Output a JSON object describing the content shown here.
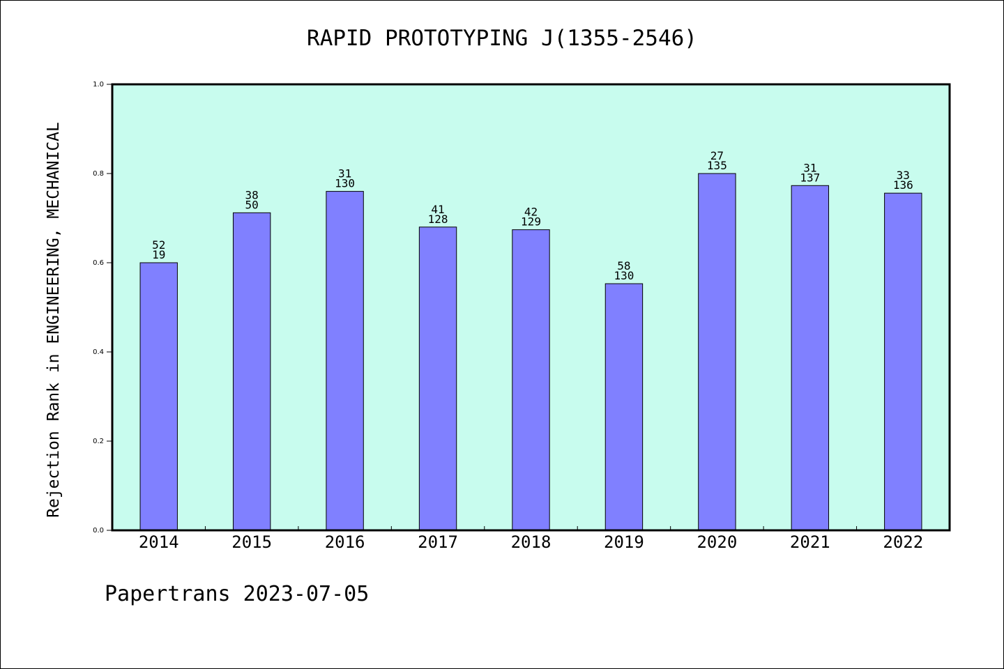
{
  "chart_data": {
    "type": "bar",
    "title": "RAPID PROTOTYPING J(1355-2546)",
    "xlabel": "",
    "ylabel": "Rejection Rank in ENGINEERING, MECHANICAL",
    "categories": [
      "2014",
      "2015",
      "2016",
      "2017",
      "2018",
      "2019",
      "2020",
      "2021",
      "2022"
    ],
    "values": [
      0.6,
      0.712,
      0.76,
      0.68,
      0.674,
      0.553,
      0.8,
      0.773,
      0.756
    ],
    "label_top": [
      "52",
      "38",
      "31",
      "41",
      "42",
      "58",
      "27",
      "31",
      "33"
    ],
    "label_bottom": [
      "19",
      "50",
      "130",
      "128",
      "129",
      "130",
      "135",
      "137",
      "136"
    ],
    "ylim": [
      0.0,
      1.0
    ],
    "yticks": [
      "0.0",
      "0.2",
      "0.4",
      "0.6",
      "0.8",
      "1.0"
    ],
    "grid": false,
    "legend": "none",
    "colors": {
      "bar": "#8080ff",
      "plot_background": "#c8fcee"
    }
  },
  "footer": {
    "text": "Papertrans 2023-07-05"
  }
}
